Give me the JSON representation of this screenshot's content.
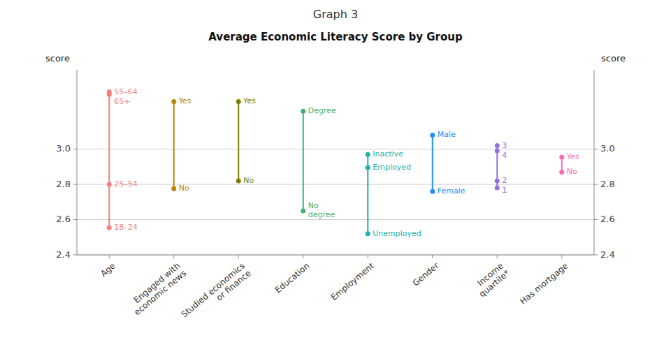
{
  "chart_data": {
    "type": "dot_range",
    "title": "Graph 3",
    "subtitle": "Average Economic Literacy Score by Group",
    "ylabel": "score",
    "y2label": "score",
    "ylim": [
      2.4,
      3.45
    ],
    "yticks": [
      2.4,
      2.6,
      2.8,
      {
        "value": 3.0,
        "label": "3.0"
      }
    ],
    "y2lim": [
      2.4,
      3.45
    ],
    "y2ticks": [
      2.4,
      2.6,
      2.8,
      {
        "value": 3.0,
        "label": "3.0"
      }
    ],
    "grid": true,
    "categories": [
      "Age",
      "Engaged with\neconomic news",
      "Studied economics\nor finance",
      "Education",
      "Employment",
      "Gender",
      "Income\nquartile*",
      "Has mortgage"
    ],
    "groups": [
      {
        "color": "#F08080",
        "labels": [
          "18–24",
          "25–54",
          "55–64",
          "65+"
        ],
        "values": [
          2.555,
          2.8,
          3.325,
          3.31
        ]
      },
      {
        "color": "#B8860B",
        "labels": [
          "Yes",
          "No"
        ],
        "values": [
          3.27,
          2.775
        ]
      },
      {
        "color": "#808000",
        "labels": [
          "Yes",
          "No"
        ],
        "values": [
          3.27,
          2.82
        ]
      },
      {
        "color": "#3CB371",
        "labels": [
          "Degree",
          "No\ndegree"
        ],
        "values": [
          3.215,
          2.65
        ]
      },
      {
        "color": "#20B2AA",
        "labels": [
          "Inactive",
          "Employed",
          "Unemployed"
        ],
        "values": [
          2.97,
          2.895,
          2.52
        ]
      },
      {
        "color": "#1E90FF",
        "labels": [
          "Male",
          "Female"
        ],
        "values": [
          3.08,
          2.76
        ]
      },
      {
        "color": "#9370DB",
        "labels": [
          "3",
          "4",
          "2",
          "1"
        ],
        "values": [
          3.02,
          2.99,
          2.82,
          2.78
        ]
      },
      {
        "color": "#FF69B4",
        "labels": [
          "Yes",
          "No"
        ],
        "values": [
          2.955,
          2.87
        ]
      }
    ]
  }
}
